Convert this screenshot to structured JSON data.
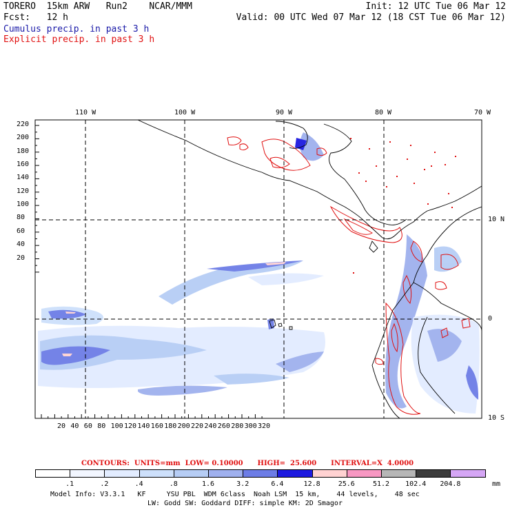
{
  "header": {
    "line1_left": "TORERO  15km ARW   Run2    NCAR/MMM",
    "line1_right": "Init: 12 UTC Tue 06 Mar 12",
    "line2_left": "Fcst:   12 h",
    "line2_right": "Valid: 00 UTC Wed 07 Mar 12 (18 CST Tue 06 Mar 12)",
    "line3": "Cumulus precip. in past 3 h",
    "line4": "Explicit precip. in past 3 h"
  },
  "axes": {
    "lon_labels": [
      "110 W",
      "100 W",
      "90 W",
      "80 W",
      "70 W"
    ],
    "lat_labels_right": [
      "10 N",
      "0",
      "10 S"
    ],
    "y_ticks": [
      "220",
      "200",
      "180",
      "160",
      "140",
      "120",
      "100",
      "80",
      "60",
      "40",
      "20"
    ],
    "x_ticks": [
      "20",
      "40",
      "60",
      "80",
      "100",
      "120",
      "140",
      "160",
      "180",
      "200",
      "220",
      "240",
      "260",
      "280",
      "300",
      "320"
    ]
  },
  "contours_line": "CONTOURS:  UNITS=mm  LOW= 0.10000      HIGH=  25.600      INTERVAL=X  4.0000",
  "colorbar": {
    "labels": [
      ".1",
      ".2",
      ".4",
      ".8",
      "1.6",
      "3.2",
      "6.4",
      "12.8",
      "25.6",
      "51.2",
      "102.4",
      "204.8"
    ],
    "unit": "mm",
    "colors": [
      "#ffffff",
      "#f2f6ff",
      "#e2ecff",
      "#cde0fb",
      "#b6cdf5",
      "#9fb0ee",
      "#6d7de6",
      "#1d1ae0",
      "#ffd2d2",
      "#f797c2",
      "#b6b6b6",
      "#3c3c3c",
      "#d5a6f5"
    ]
  },
  "footer": {
    "line1": "Model Info: V3.3.1   KF     YSU PBL  WDM 6class  Noah LSM  15 km,    44 levels,    48 sec",
    "line2": "LW: Godd SW: Goddard DIFF: simple KM: 2D Smagor"
  }
}
